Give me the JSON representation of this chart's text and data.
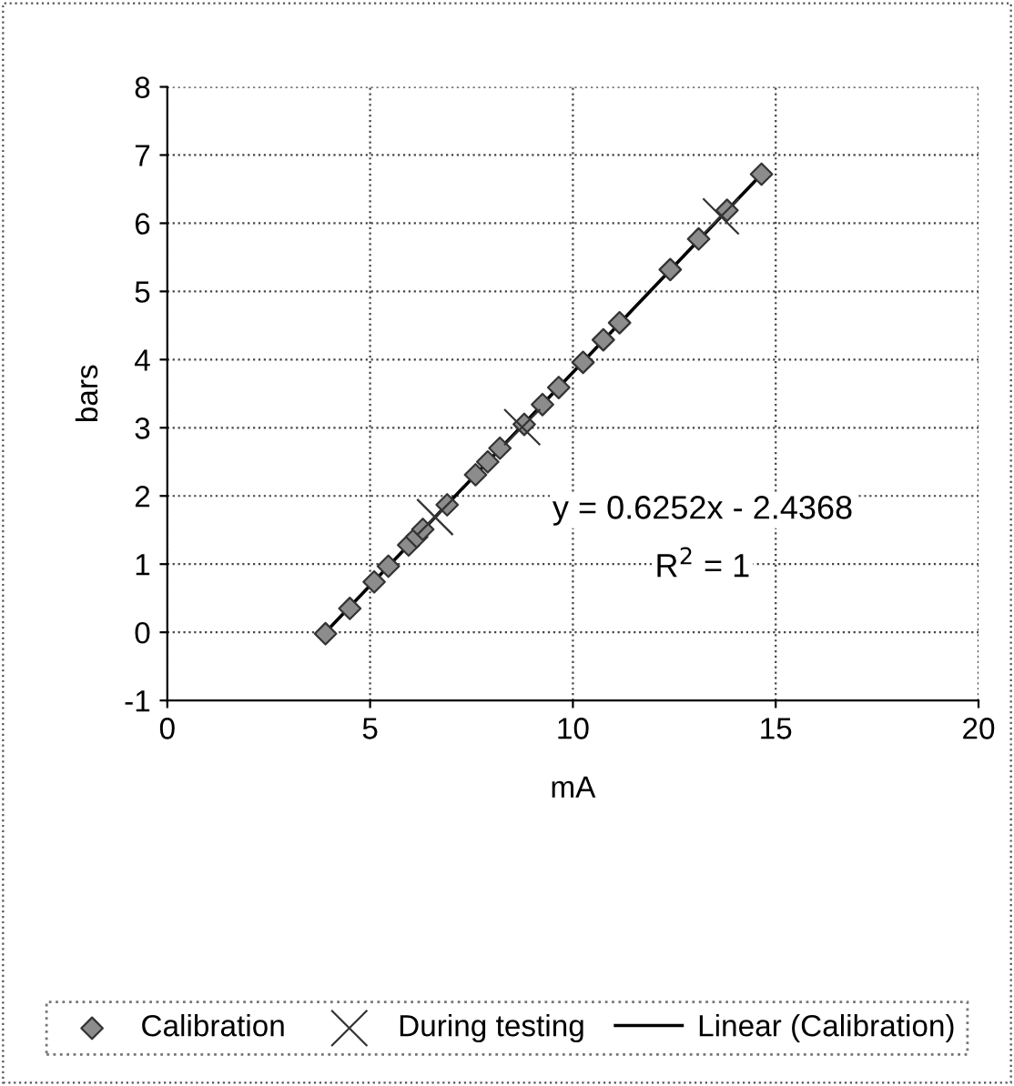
{
  "chart_data": {
    "type": "scatter",
    "xlabel": "mA",
    "ylabel": "bars",
    "xlim": [
      0,
      20
    ],
    "ylim": [
      -1,
      8
    ],
    "xticks": [
      0,
      5,
      10,
      15,
      20
    ],
    "yticks": [
      -1,
      0,
      1,
      2,
      3,
      4,
      5,
      6,
      7,
      8
    ],
    "grid": true,
    "legend": "bottom",
    "annotations": [
      "y = 0.6252x - 2.4368",
      "R$^{2}$ = 1"
    ],
    "series": [
      {
        "name": "Calibration",
        "marker": "diamond",
        "color": "#8c8c8c",
        "x": [
          3.9,
          4.5,
          5.1,
          5.45,
          5.95,
          6.15,
          6.3,
          6.9,
          7.6,
          7.9,
          8.2,
          8.8,
          9.25,
          9.65,
          10.25,
          10.75,
          11.15,
          12.4,
          13.1,
          13.8,
          14.65
        ],
        "values": [
          -0.02,
          0.35,
          0.74,
          0.97,
          1.28,
          1.4,
          1.51,
          1.87,
          2.31,
          2.5,
          2.7,
          3.05,
          3.34,
          3.59,
          3.96,
          4.29,
          4.54,
          5.32,
          5.77,
          6.19,
          6.72
        ]
      },
      {
        "name": "During testing",
        "marker": "cross",
        "color": "#333333",
        "x": [
          6.6,
          8.75,
          13.65
        ],
        "values": [
          1.69,
          3.01,
          6.1
        ]
      },
      {
        "name": "Linear (Calibration)",
        "type": "line",
        "line_style": "solid",
        "color": "#000000",
        "x": [
          3.9,
          14.65
        ],
        "values": [
          -0.0,
          6.72
        ]
      }
    ]
  }
}
